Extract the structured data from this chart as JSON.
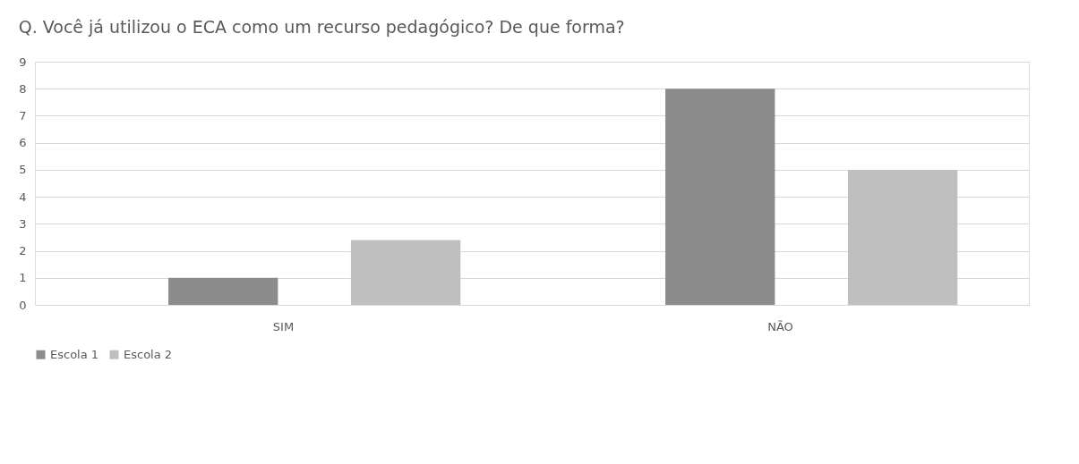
{
  "chart_data": {
    "type": "bar",
    "title": "Q. Você já utilizou o ECA como um recurso pedagógico? De que forma?",
    "categories": [
      "SIM",
      "NÃO"
    ],
    "series": [
      {
        "name": "Escola 1",
        "color": "#8c8c8c",
        "values": [
          1,
          8
        ]
      },
      {
        "name": "Escola 2",
        "color": "#bfbfbf",
        "values": [
          2.4,
          5
        ]
      }
    ],
    "ylim": [
      0,
      9
    ],
    "yticks": [
      0,
      1,
      2,
      3,
      4,
      5,
      6,
      7,
      8,
      9
    ],
    "grid": "y",
    "legend": "bottom"
  }
}
